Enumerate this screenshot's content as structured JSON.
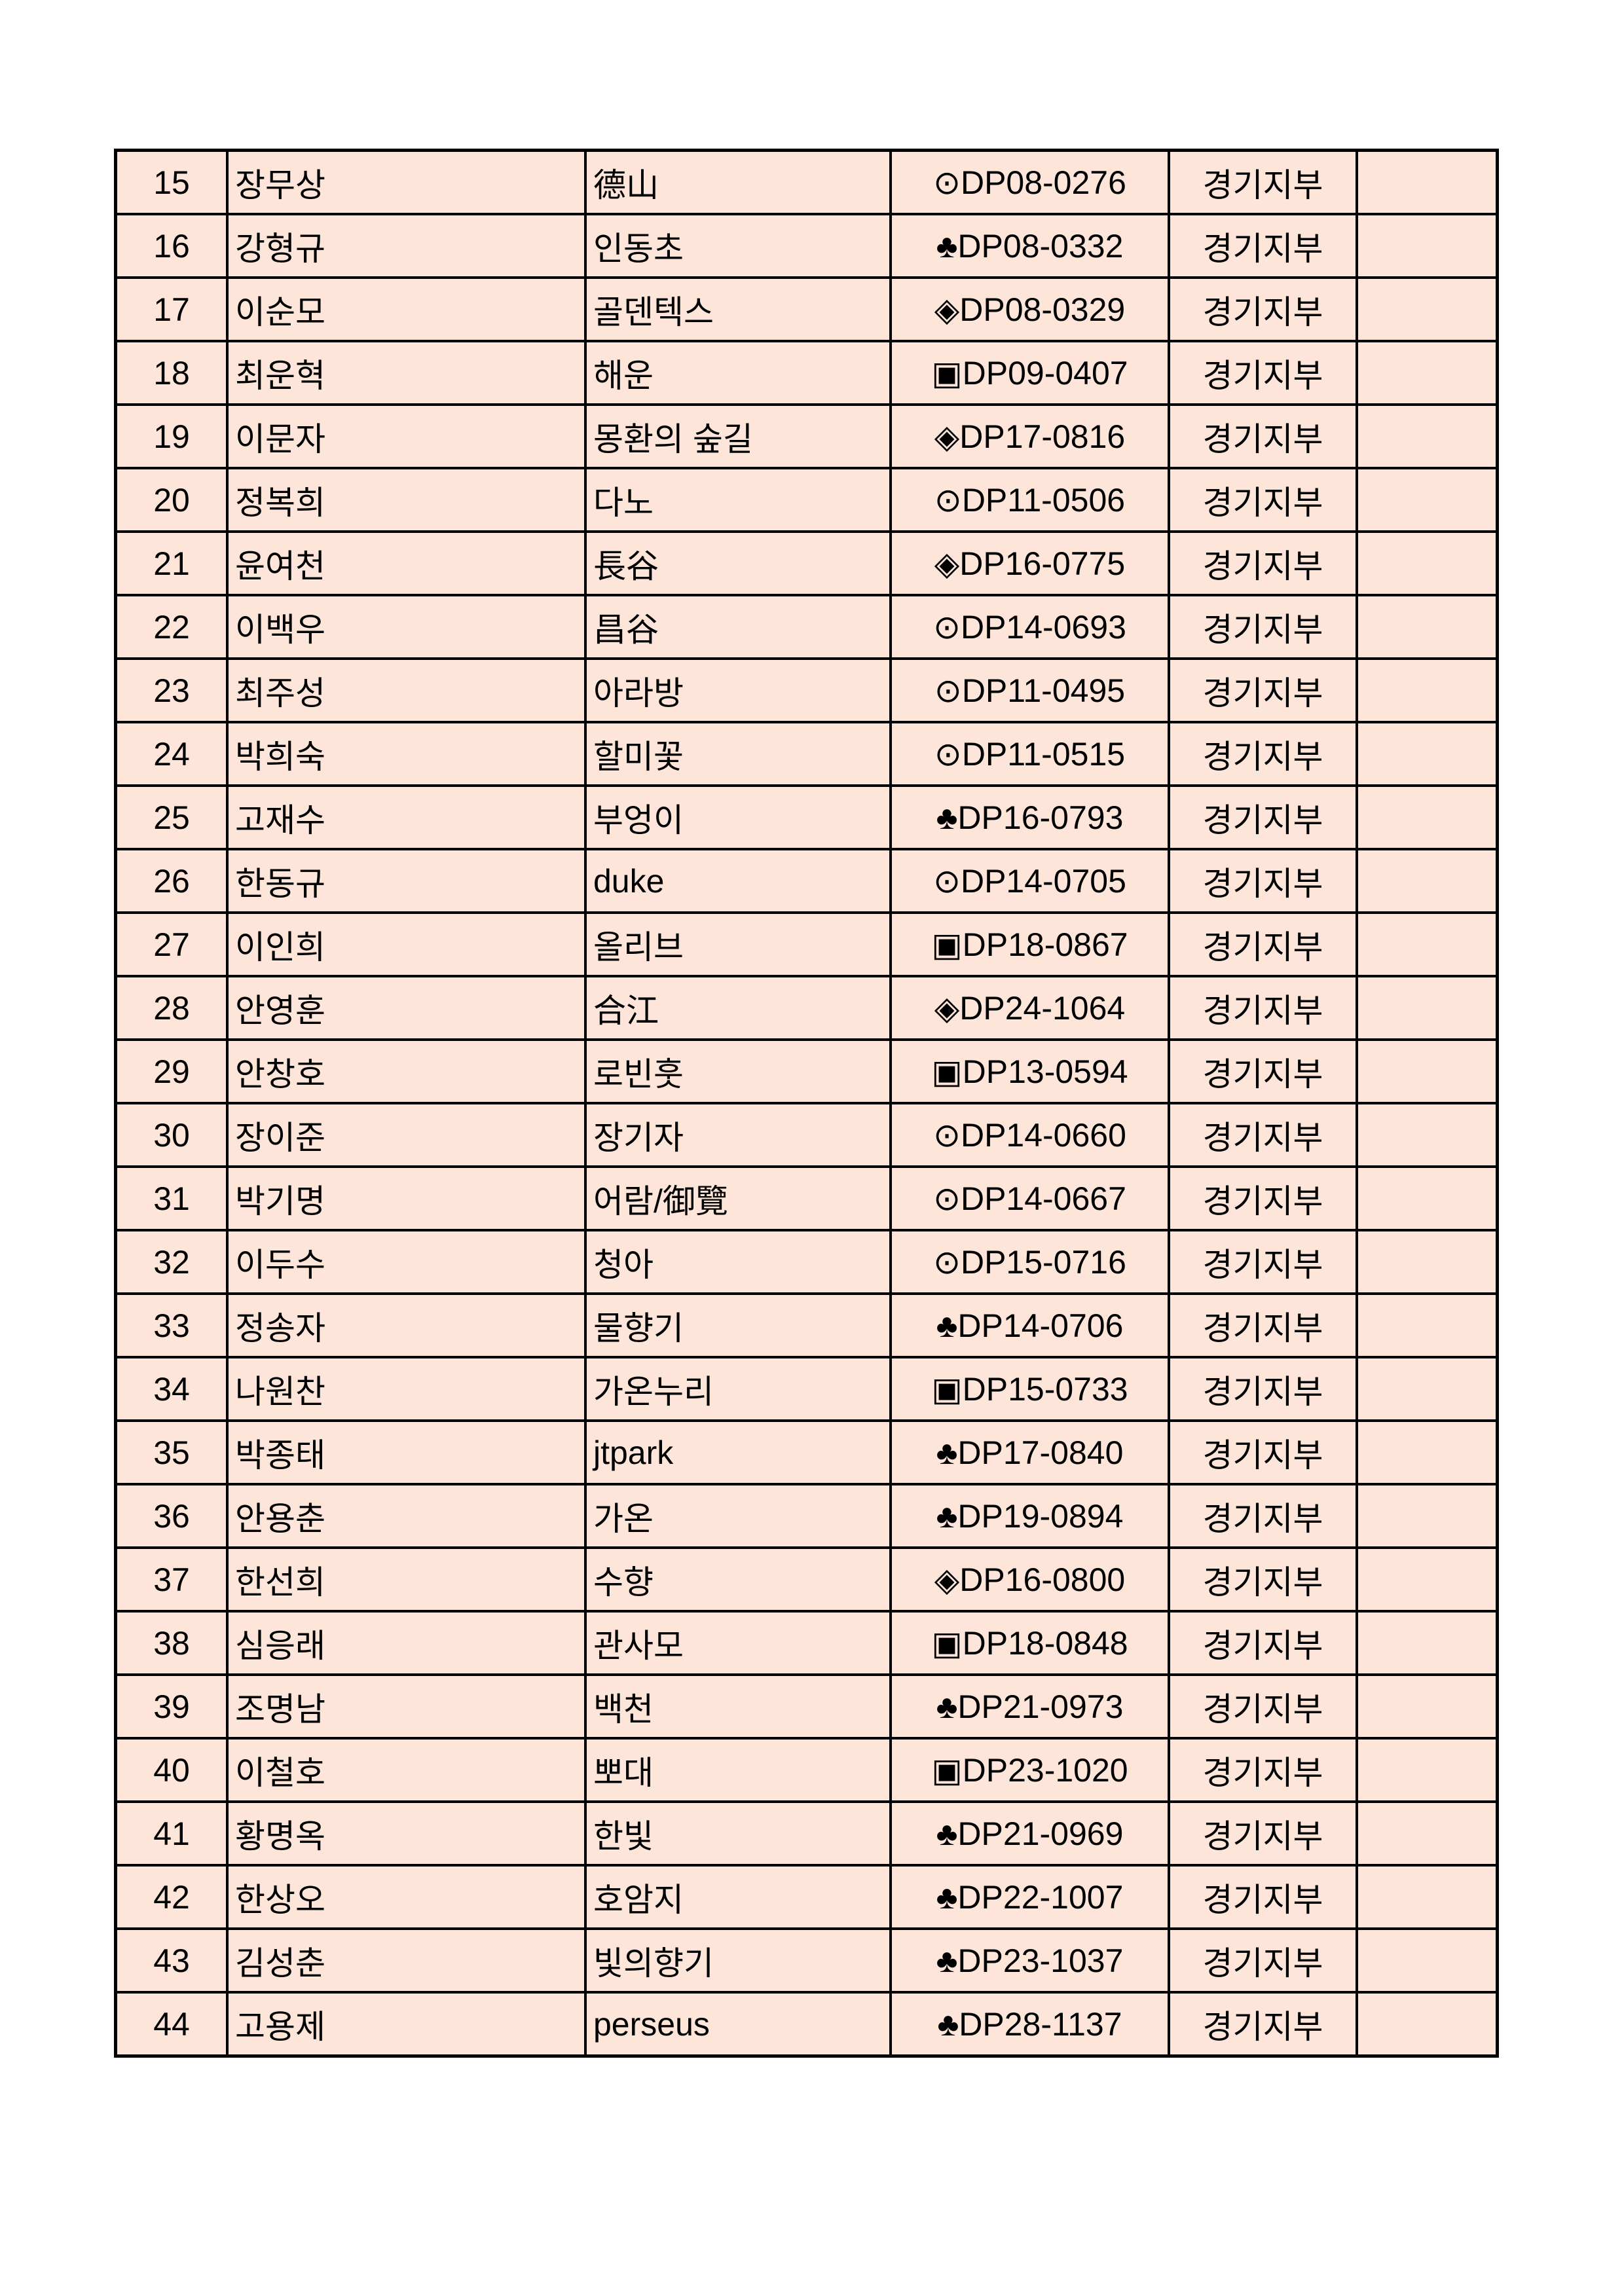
{
  "rows": [
    {
      "no": "15",
      "name": "장무상",
      "nick": "德山",
      "code": "⊙DP08-0276",
      "region": "경기지부",
      "note": ""
    },
    {
      "no": "16",
      "name": "강형규",
      "nick": "인동초",
      "code": "♣DP08-0332",
      "region": "경기지부",
      "note": ""
    },
    {
      "no": "17",
      "name": "이순모",
      "nick": "골덴텍스",
      "code": "◈DP08-0329",
      "region": "경기지부",
      "note": ""
    },
    {
      "no": "18",
      "name": "최운혁",
      "nick": "해운",
      "code": "▣DP09-0407",
      "region": "경기지부",
      "note": ""
    },
    {
      "no": "19",
      "name": "이문자",
      "nick": "몽환의 숲길",
      "code": "◈DP17-0816",
      "region": "경기지부",
      "note": ""
    },
    {
      "no": "20",
      "name": "정복희",
      "nick": "다노",
      "code": "⊙DP11-0506",
      "region": "경기지부",
      "note": ""
    },
    {
      "no": "21",
      "name": "윤여천",
      "nick": "長谷",
      "code": "◈DP16-0775",
      "region": "경기지부",
      "note": ""
    },
    {
      "no": "22",
      "name": "이백우",
      "nick": "昌谷",
      "code": "⊙DP14-0693",
      "region": "경기지부",
      "note": ""
    },
    {
      "no": "23",
      "name": "최주성",
      "nick": "아라방",
      "code": "⊙DP11-0495",
      "region": "경기지부",
      "note": ""
    },
    {
      "no": "24",
      "name": "박희숙",
      "nick": "할미꽃",
      "code": "⊙DP11-0515",
      "region": "경기지부",
      "note": ""
    },
    {
      "no": "25",
      "name": "고재수",
      "nick": "부엉이",
      "code": "♣DP16-0793",
      "region": "경기지부",
      "note": ""
    },
    {
      "no": "26",
      "name": "한동규",
      "nick": "duke",
      "code": "⊙DP14-0705",
      "region": "경기지부",
      "note": ""
    },
    {
      "no": "27",
      "name": "이인희",
      "nick": "올리브",
      "code": "▣DP18-0867",
      "region": "경기지부",
      "note": ""
    },
    {
      "no": "28",
      "name": "안영훈",
      "nick": "合江",
      "code": "◈DP24-1064",
      "region": "경기지부",
      "note": ""
    },
    {
      "no": "29",
      "name": "안창호",
      "nick": "로빈훗",
      "code": "▣DP13-0594",
      "region": "경기지부",
      "note": ""
    },
    {
      "no": "30",
      "name": "장이준",
      "nick": "장기자",
      "code": "⊙DP14-0660",
      "region": "경기지부",
      "note": ""
    },
    {
      "no": "31",
      "name": "박기명",
      "nick": "어람/御覽",
      "code": "⊙DP14-0667",
      "region": "경기지부",
      "note": ""
    },
    {
      "no": "32",
      "name": "이두수",
      "nick": "청아",
      "code": "⊙DP15-0716",
      "region": "경기지부",
      "note": ""
    },
    {
      "no": "33",
      "name": "정송자",
      "nick": "물향기",
      "code": "♣DP14-0706",
      "region": "경기지부",
      "note": ""
    },
    {
      "no": "34",
      "name": "나원찬",
      "nick": "가온누리",
      "code": "▣DP15-0733",
      "region": "경기지부",
      "note": ""
    },
    {
      "no": "35",
      "name": "박종태",
      "nick": "jtpark",
      "code": "♣DP17-0840",
      "region": "경기지부",
      "note": ""
    },
    {
      "no": "36",
      "name": "안용춘",
      "nick": "가온",
      "code": "♣DP19-0894",
      "region": "경기지부",
      "note": ""
    },
    {
      "no": "37",
      "name": "한선희",
      "nick": "수향",
      "code": "◈DP16-0800",
      "region": "경기지부",
      "note": ""
    },
    {
      "no": "38",
      "name": "심응래",
      "nick": "관사모",
      "code": "▣DP18-0848",
      "region": "경기지부",
      "note": ""
    },
    {
      "no": "39",
      "name": "조명남",
      "nick": "백천",
      "code": "♣DP21-0973",
      "region": "경기지부",
      "note": ""
    },
    {
      "no": "40",
      "name": "이철호",
      "nick": "뽀대",
      "code": "▣DP23-1020",
      "region": "경기지부",
      "note": ""
    },
    {
      "no": "41",
      "name": "황명옥",
      "nick": "한빛",
      "code": "♣DP21-0969",
      "region": "경기지부",
      "note": ""
    },
    {
      "no": "42",
      "name": "한상오",
      "nick": "호암지",
      "code": "♣DP22-1007",
      "region": "경기지부",
      "note": ""
    },
    {
      "no": "43",
      "name": "김성춘",
      "nick": "빛의향기",
      "code": "♣DP23-1037",
      "region": "경기지부",
      "note": ""
    },
    {
      "no": "44",
      "name": "고용제",
      "nick": "perseus",
      "code": "♣DP28-1137",
      "region": "경기지부",
      "note": ""
    }
  ],
  "colors": {
    "cell_background": "#fde5d9",
    "border": "#000000"
  }
}
